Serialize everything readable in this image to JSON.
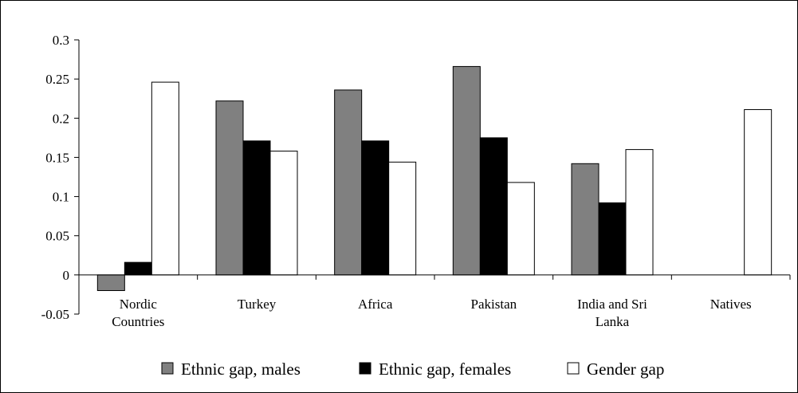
{
  "chart_data": {
    "type": "bar",
    "title": "",
    "xlabel": "",
    "ylabel": "",
    "categories": [
      [
        "Nordic",
        "Countries"
      ],
      [
        "Turkey"
      ],
      [
        "Africa"
      ],
      [
        "Pakistan"
      ],
      [
        "India and Sri",
        "Lanka"
      ],
      [
        "Natives"
      ]
    ],
    "series": [
      {
        "name": "Ethnic gap, males",
        "color": "#808080",
        "values": [
          -0.02,
          0.222,
          0.236,
          0.266,
          0.142,
          null
        ]
      },
      {
        "name": "Ethnic gap, females",
        "color": "#000000",
        "values": [
          0.016,
          0.171,
          0.171,
          0.175,
          0.092,
          null
        ]
      },
      {
        "name": "Gender gap",
        "color": "#ffffff",
        "values": [
          0.246,
          0.158,
          0.144,
          0.118,
          0.16,
          0.211
        ]
      }
    ],
    "ylim": [
      -0.05,
      0.3
    ],
    "yticks": [
      "-0.05",
      "0",
      "0.05",
      "0.1",
      "0.15",
      "0.2",
      "0.25",
      "0.3"
    ],
    "grid": false,
    "legend_position": "bottom"
  }
}
